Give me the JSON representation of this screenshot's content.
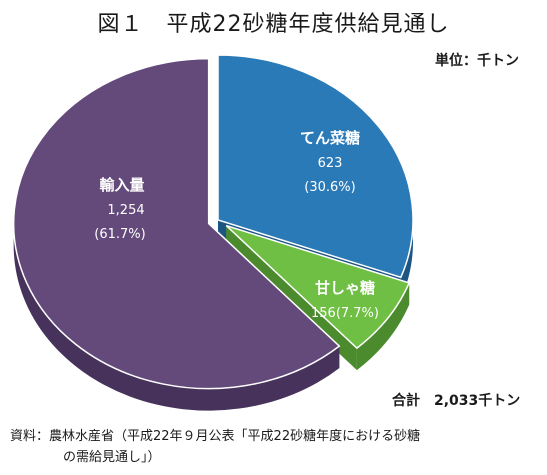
{
  "title": "図１　平成22砂糖年度供給見通し",
  "unit": "単位：千トン",
  "total": "合計　2,033千トン",
  "source": {
    "line1": "資料：農林水産省（平成22年９月公表「平成22砂糖年度における砂糖",
    "line2": "の需給見通し」）"
  },
  "chart_data": {
    "type": "pie",
    "title": "平成22砂糖年度供給見通し",
    "unit": "千トン",
    "total": 2033,
    "slices": [
      {
        "name": "てん菜糖",
        "value": 623,
        "value_label": "623",
        "percent_label": "(30.6%)",
        "color": "#2b7ab8",
        "side_color": "#1d5683",
        "exploded": false
      },
      {
        "name": "甘しゃ糖",
        "value": 156,
        "value_label": "156(7.7%)",
        "percent_label": "",
        "color": "#6fbf44",
        "side_color": "#4c8a2e",
        "exploded": true
      },
      {
        "name": "輸入量",
        "value": 1254,
        "value_label": "1,254",
        "percent_label": "(61.7%)",
        "color": "#634a7b",
        "side_color": "#46325a",
        "exploded": true
      }
    ]
  }
}
